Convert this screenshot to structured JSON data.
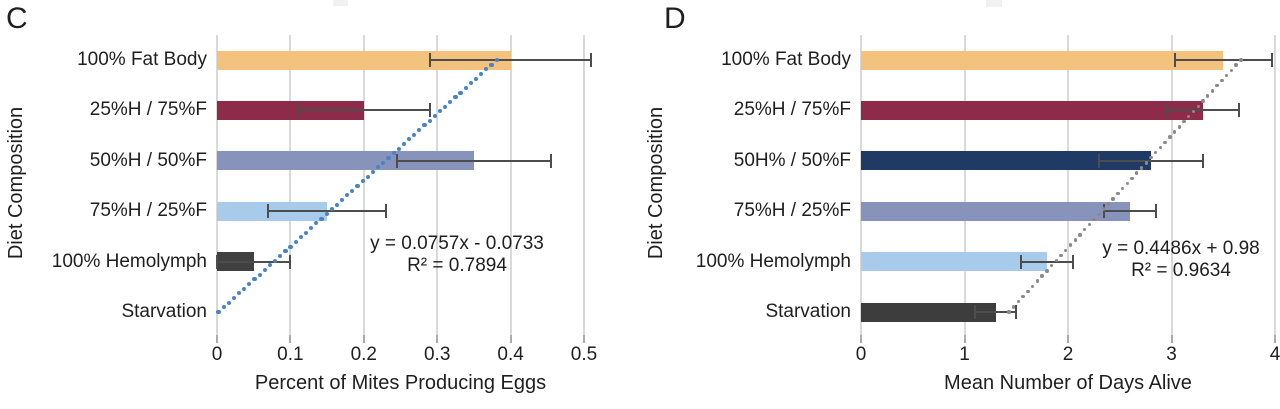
{
  "figure": {
    "background": "#ffffff",
    "grid_color": "#d9d9d9",
    "tick_color": "#ababab",
    "error_bar_color": "#4d4d4d",
    "text_color": "#1f1f1f"
  },
  "chart_data": [
    {
      "type": "bar",
      "orientation": "horizontal",
      "panel_label": "C",
      "ylabel": "Diet Composition",
      "xlabel": "Percent of Mites Producing Eggs",
      "categories": [
        "100% Fat Body",
        "25%H / 75%F",
        "50%H / 50%F",
        "75%H / 25%F",
        "100% Hemolymph",
        "Starvation"
      ],
      "values": [
        0.4,
        0.2,
        0.35,
        0.15,
        0.05,
        0
      ],
      "errors": [
        0.11,
        0.09,
        0.105,
        0.08,
        0.05,
        0
      ],
      "bar_colors": [
        "#f3c27d",
        "#8e2b4b",
        "#8893bb",
        "#a9cbeb",
        "#404040",
        null
      ],
      "xlim": [
        0,
        0.52
      ],
      "xticks": [
        0,
        0.1,
        0.2,
        0.3,
        0.4,
        0.5
      ],
      "xtick_labels": [
        "0",
        "0.1",
        "0.2",
        "0.3",
        "0.4",
        "0.5"
      ],
      "grid": true,
      "legend": null,
      "trendline": {
        "style": "dotted",
        "color": "#4a83c3",
        "equation_line1": "y = 0.0757x - 0.0733",
        "equation_line2": "R² = 0.7894",
        "start_value": 0.002,
        "end_value": 0.381
      }
    },
    {
      "type": "bar",
      "orientation": "horizontal",
      "panel_label": "D",
      "ylabel": "Diet Composition",
      "xlabel": "Mean Number of Days Alive",
      "categories": [
        "100% Fat Body",
        "25%H / 75%F",
        "50H% / 50%F",
        "75%H / 25%F",
        "100% Hemolymph",
        "Starvation"
      ],
      "values": [
        3.5,
        3.3,
        2.8,
        2.6,
        1.8,
        1.3
      ],
      "errors": [
        0.47,
        0.35,
        0.5,
        0.25,
        0.25,
        0.2
      ],
      "bar_colors": [
        "#f3c27d",
        "#8e2b4b",
        "#203a66",
        "#8893bb",
        "#a9cbeb",
        "#3d3d3d"
      ],
      "xlim": [
        0,
        4.05
      ],
      "xticks": [
        0,
        1,
        2,
        3,
        4
      ],
      "xtick_labels": [
        "0",
        "1",
        "2",
        "3",
        "4"
      ],
      "grid": true,
      "legend": null,
      "trendline": {
        "style": "dotted",
        "color": "#8a8a8a",
        "equation_line1": "y = 0.4486x + 0.98",
        "equation_line2": "R² = 0.9634",
        "start_value": 1.43,
        "end_value": 3.67
      }
    }
  ]
}
